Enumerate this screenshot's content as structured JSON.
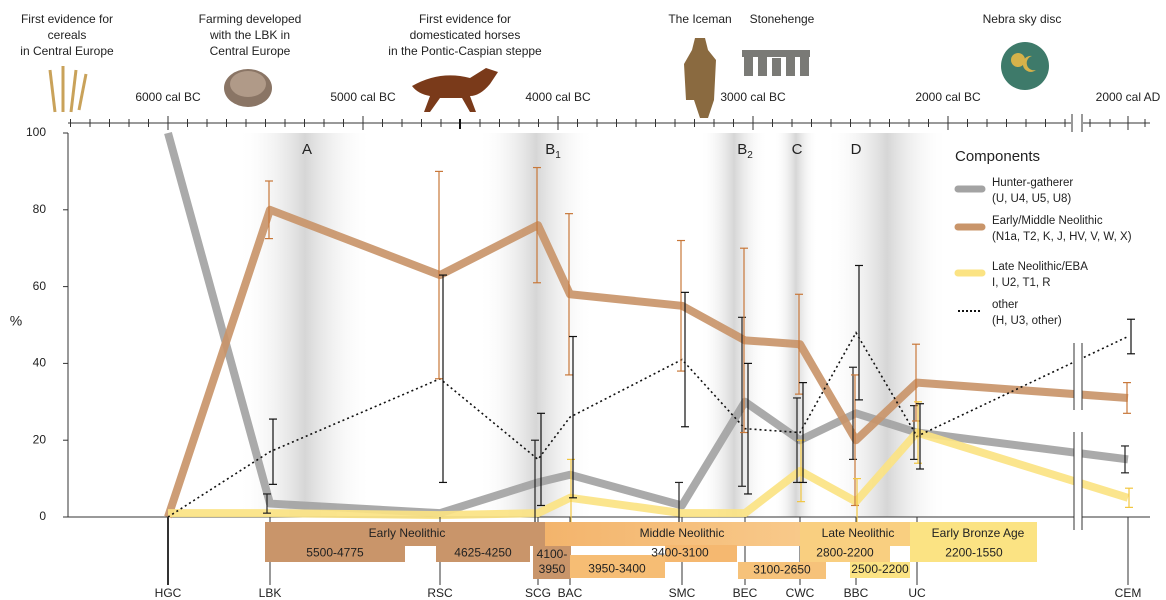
{
  "chart_data": {
    "type": "line",
    "y_label": "%",
    "ylim": [
      0,
      100
    ],
    "yticks": [
      0,
      20,
      40,
      60,
      80,
      100
    ],
    "categories": [
      "HGC",
      "LBK",
      "RSC",
      "SCG",
      "BAC",
      "SMC",
      "BEC",
      "CWC",
      "BBC",
      "UC",
      "CEM"
    ],
    "series": [
      {
        "name": "Hunter-gatherer",
        "detail": "(U, U4, U5, U8)",
        "color": "#a3a3a3",
        "error_color": "#222222",
        "style": "solid",
        "values": [
          100,
          3.5,
          1,
          9,
          11,
          3,
          30,
          20,
          27,
          22,
          15
        ],
        "errors": [
          null,
          2.5,
          null,
          11,
          null,
          6,
          22,
          11,
          12,
          7,
          3.5
        ]
      },
      {
        "name": "Early/Middle Neolithic",
        "detail": "(N1a, T2, K, J, HV, V, W, X)",
        "color": "#c9956a",
        "error_color": "#c8783a",
        "style": "solid",
        "values": [
          0,
          80,
          63,
          76,
          58,
          55,
          46,
          45,
          20,
          35,
          31
        ],
        "errors": [
          null,
          7.5,
          27,
          15,
          21,
          17,
          24,
          13,
          17,
          10,
          4
        ]
      },
      {
        "name": "Late Neolithic/EBA",
        "detail": "I, U2, T1, R",
        "color": "#fbe383",
        "error_color": "#f2c640",
        "style": "solid",
        "values": [
          1,
          1,
          0.5,
          1,
          5,
          1,
          1,
          12,
          4,
          22,
          5
        ],
        "errors": [
          null,
          null,
          null,
          null,
          10,
          null,
          null,
          8,
          6,
          8,
          2.5
        ]
      },
      {
        "name": "other",
        "detail": "(H, U3, other)",
        "color": "#111111",
        "error_color": "#111111",
        "style": "dotted",
        "values": [
          0,
          17,
          36,
          15,
          26,
          41,
          23,
          22,
          48,
          21,
          47
        ],
        "errors": [
          null,
          8.5,
          27,
          12,
          21,
          17.5,
          17,
          13,
          17.5,
          8.5,
          4.5
        ]
      }
    ],
    "legend_title": "Components",
    "timeline_ticks": [
      "6000 cal BC",
      "5000 cal BC",
      "4000 cal BC",
      "3000 cal BC",
      "2000 cal BC",
      "2000 cal AD"
    ],
    "events": [
      {
        "lines": [
          "First evidence for",
          "cereals",
          "in Central Europe"
        ]
      },
      {
        "lines": [
          "Farming developed",
          "with the LBK in",
          "Central Europe"
        ]
      },
      {
        "lines": [
          "First evidence for",
          "domesticated horses",
          "in the Pontic-Caspian steppe"
        ]
      },
      {
        "lines": [
          "The Iceman"
        ]
      },
      {
        "lines": [
          "Stonehenge"
        ]
      },
      {
        "lines": [
          "Nebra sky disc"
        ]
      }
    ],
    "periods": [
      {
        "label": "A"
      },
      {
        "label": "B",
        "subscript": "1"
      },
      {
        "label": "B",
        "subscript": "2"
      },
      {
        "label": "C"
      },
      {
        "label": "D"
      }
    ],
    "phases": [
      "Early Neolithic",
      "Middle Neolithic",
      "Late Neolithic",
      "Early Bronze Age"
    ],
    "date_ranges": [
      {
        "lines": [
          "5500-4775"
        ]
      },
      {
        "lines": [
          "4625-4250"
        ]
      },
      {
        "lines": [
          "4100-",
          "3950"
        ]
      },
      {
        "lines": [
          "3950-3400"
        ]
      },
      {
        "lines": [
          "3400-3100"
        ]
      },
      {
        "lines": [
          "3100-2650"
        ]
      },
      {
        "lines": [
          "2800-2200"
        ]
      },
      {
        "lines": [
          "2500-2200"
        ]
      },
      {
        "lines": [
          "2200-1550"
        ]
      }
    ]
  }
}
